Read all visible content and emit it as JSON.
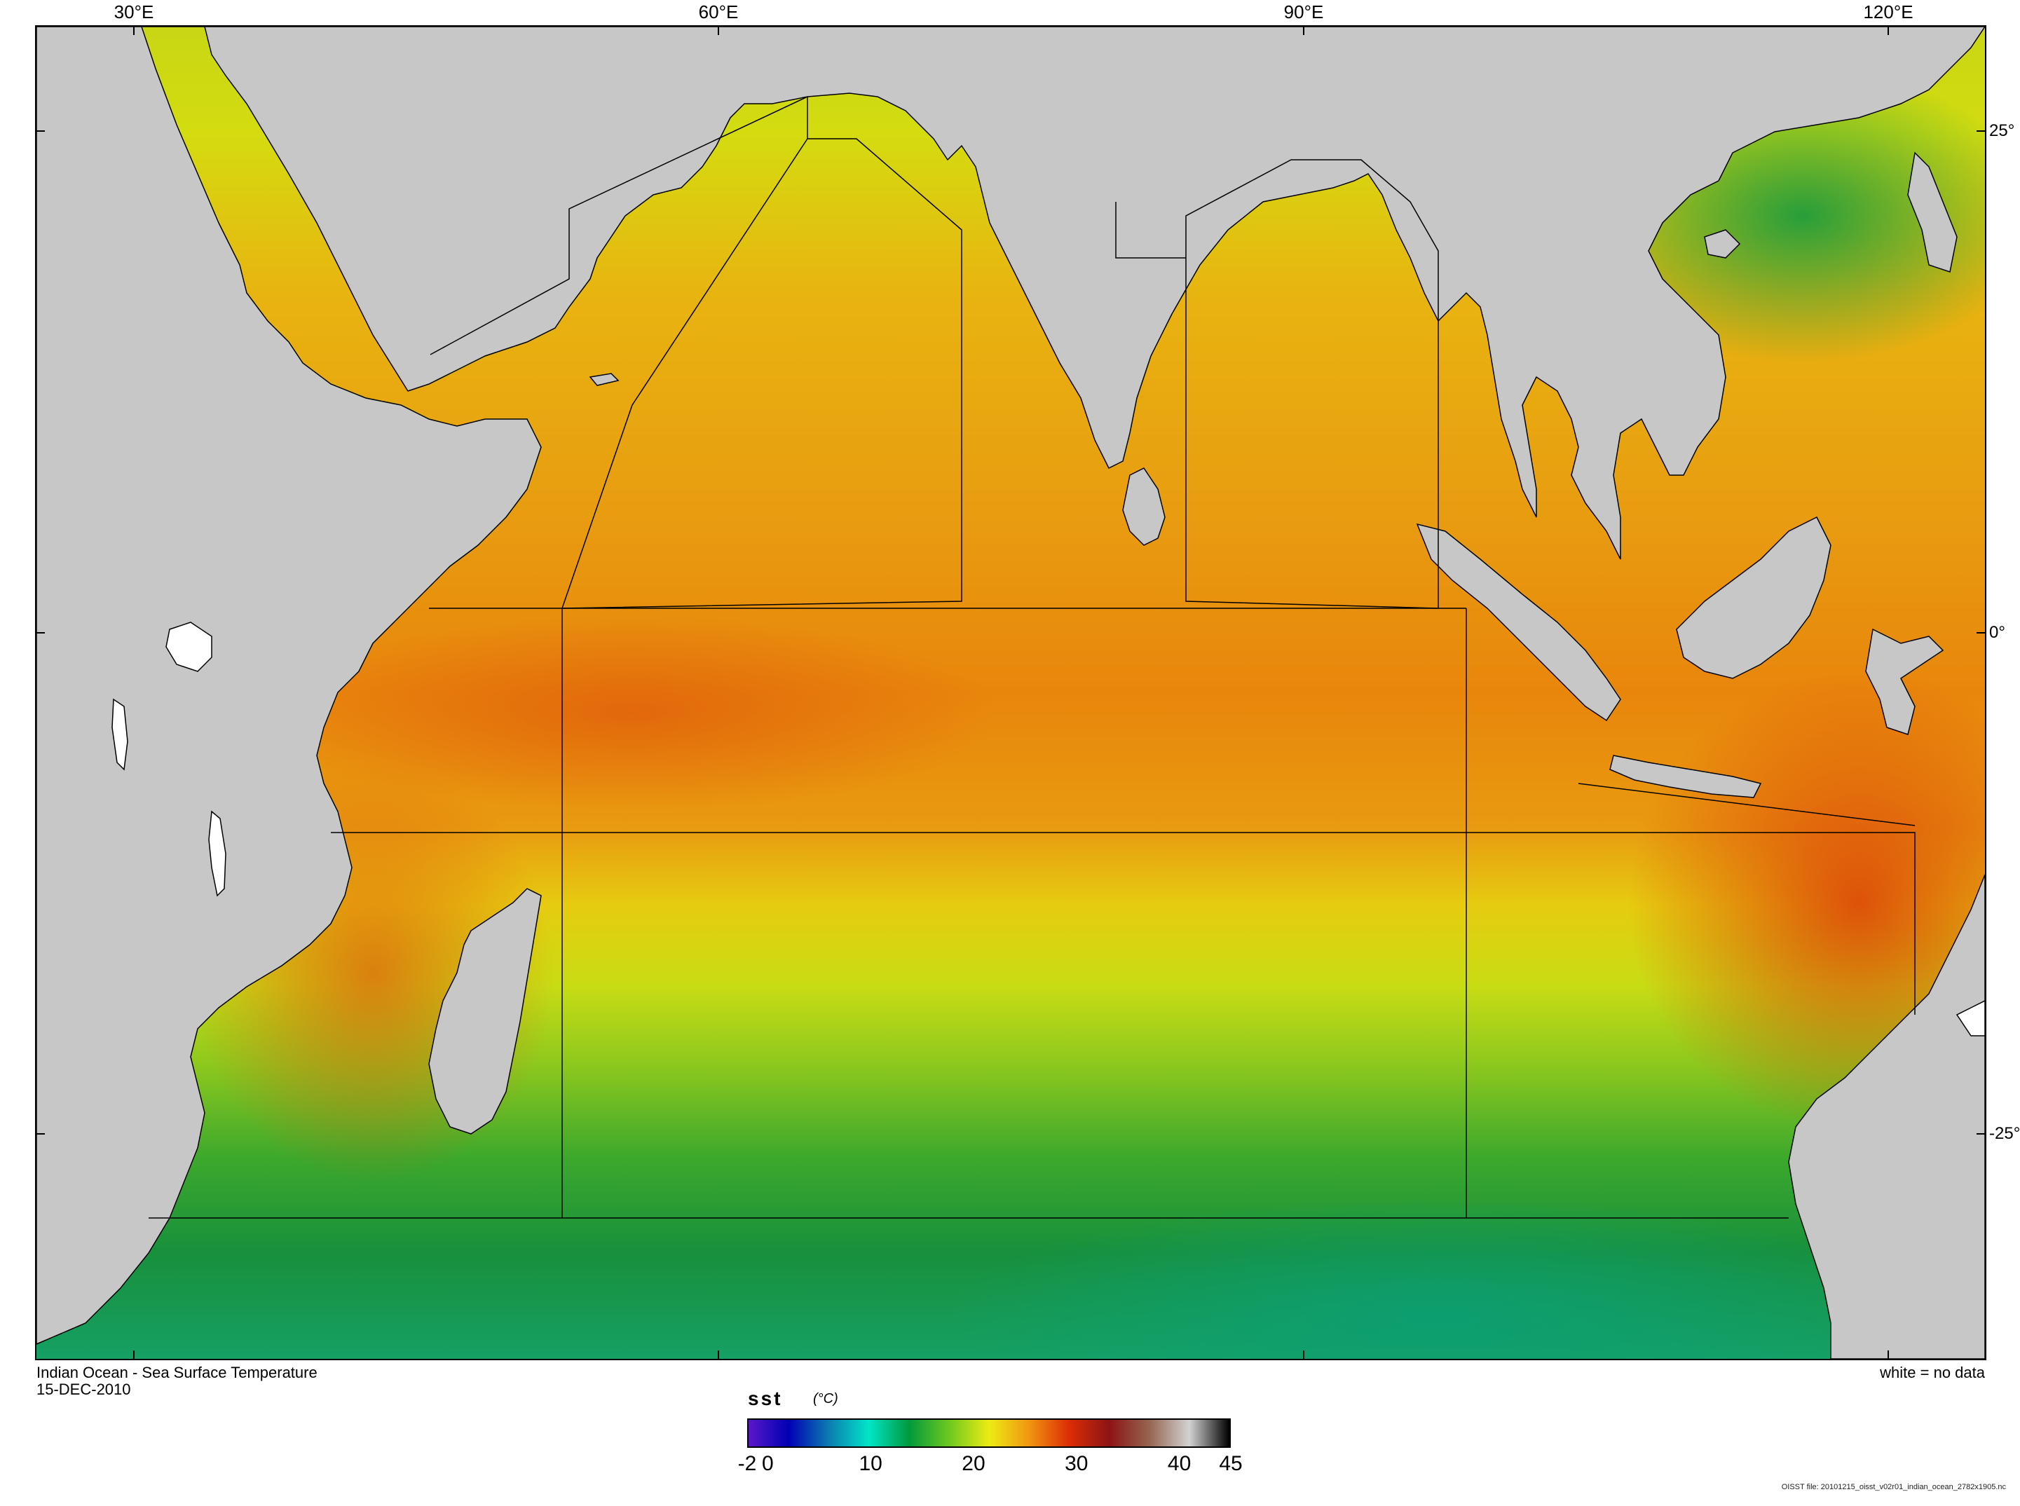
{
  "map": {
    "title": "Indian Ocean - Sea Surface Temperature",
    "date": "15-DEC-2010",
    "no_data_note": "white = no data",
    "file_note": "OISST file: 20101215_oisst_v02r01_indian_ocean_2782x1905.nc",
    "longitude_labels": [
      "30°E",
      "60°E",
      "90°E",
      "120°E"
    ],
    "latitude_labels": [
      "25°",
      "0°",
      "-25°"
    ],
    "land_color": "#c7c7c7",
    "no_data_color": "#ffffff"
  },
  "colorbar": {
    "variable": "sst",
    "units": "(°C)",
    "range": [
      -2,
      45
    ],
    "tick_labels": [
      "-2",
      "0",
      "10",
      "20",
      "30",
      "40",
      "45"
    ],
    "tick_values": [
      -2,
      0,
      10,
      20,
      30,
      40,
      45
    ],
    "colors": [
      "#5a18c8",
      "#0000b4",
      "#0a7cb0",
      "#00e6c8",
      "#009a3c",
      "#6cc81e",
      "#ecec14",
      "#f09610",
      "#dc2d05",
      "#8c1414",
      "#966450",
      "#d2d2d2",
      "#000000"
    ]
  }
}
